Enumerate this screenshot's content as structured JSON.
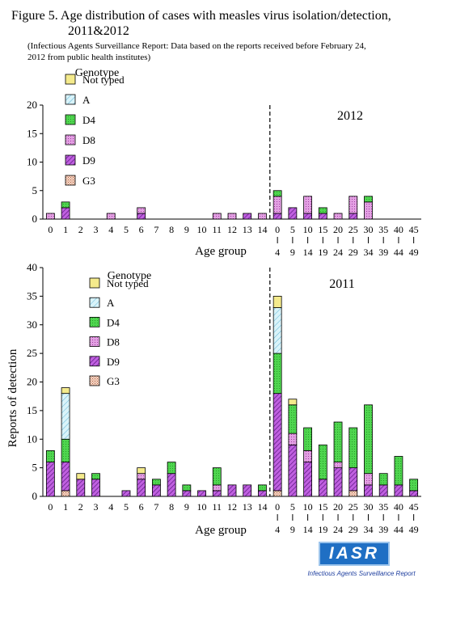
{
  "header": {
    "title_line1": "Figure 5. Age distribution of cases with measles virus isolation/detection,",
    "title_line2": "2011&2012",
    "subtitle_line1": "(Infectious Agents Surveillance Report: Data based on the reports received before February 24,",
    "subtitle_line2": "2012 from public health institutes)"
  },
  "logo": {
    "text": "IASR",
    "caption": "Infectious Agents Surveillance Report"
  },
  "colors": {
    "Not typed": "#f4ea8c",
    "A": "#cfeef6",
    "D4": "#54d854",
    "D8": "#d88ad8",
    "D9": "#b443d0",
    "G3": "#f2c9b4",
    "axis": "#000000"
  },
  "chart_data": [
    {
      "type": "bar",
      "stacked": true,
      "year_label": "2012",
      "xlabel": "Age group",
      "ylabel": "",
      "ylim": [
        0,
        20
      ],
      "yticks": [
        0,
        5,
        10,
        15,
        20
      ],
      "legend_title": "Genotype",
      "legend_position": "top-left",
      "legend": [
        "Not typed",
        "A",
        "D4",
        "D8",
        "D9",
        "G3"
      ],
      "categories": [
        "0",
        "1",
        "2",
        "3",
        "4",
        "5",
        "6",
        "7",
        "8",
        "9",
        "10",
        "11",
        "12",
        "13",
        "14",
        "0-4",
        "5-9",
        "10-14",
        "15-19",
        "20-24",
        "25-29",
        "30-34",
        "35-39",
        "40-44",
        "45-49"
      ],
      "tick_top": [
        "0",
        "1",
        "2",
        "3",
        "4",
        "5",
        "6",
        "7",
        "8",
        "9",
        "10",
        "11",
        "12",
        "13",
        "14",
        "0",
        "5",
        "10",
        "15",
        "20",
        "25",
        "30",
        "35",
        "40",
        "45"
      ],
      "tick_bottom": [
        "",
        "",
        "",
        "",
        "",
        "",
        "",
        "",
        "",
        "",
        "",
        "",
        "",
        "",
        "",
        "4",
        "9",
        "14",
        "19",
        "24",
        "29",
        "34",
        "39",
        "44",
        "49"
      ],
      "series": [
        {
          "name": "G3",
          "values": [
            0,
            0,
            0,
            0,
            0,
            0,
            0,
            0,
            0,
            0,
            0,
            0,
            0,
            0,
            0,
            0,
            0,
            0,
            0,
            0,
            0,
            0,
            0,
            0,
            0
          ]
        },
        {
          "name": "D9",
          "values": [
            0,
            2,
            0,
            0,
            0,
            0,
            1,
            0,
            0,
            0,
            0,
            0,
            0,
            1,
            0,
            1,
            2,
            1,
            1,
            0,
            1,
            0,
            0,
            0,
            0
          ]
        },
        {
          "name": "D8",
          "values": [
            1,
            0,
            0,
            0,
            1,
            0,
            1,
            0,
            0,
            0,
            0,
            1,
            1,
            0,
            1,
            3,
            0,
            3,
            0,
            1,
            3,
            3,
            0,
            0,
            0
          ]
        },
        {
          "name": "D4",
          "values": [
            0,
            1,
            0,
            0,
            0,
            0,
            0,
            0,
            0,
            0,
            0,
            0,
            0,
            0,
            0,
            1,
            0,
            0,
            1,
            0,
            0,
            1,
            0,
            0,
            0
          ]
        },
        {
          "name": "A",
          "values": [
            0,
            0,
            0,
            0,
            0,
            0,
            0,
            0,
            0,
            0,
            0,
            0,
            0,
            0,
            0,
            0,
            0,
            0,
            0,
            0,
            0,
            0,
            0,
            0,
            0
          ]
        },
        {
          "name": "Not typed",
          "values": [
            0,
            0,
            0,
            0,
            0,
            0,
            0,
            0,
            0,
            0,
            0,
            0,
            0,
            0,
            0,
            0,
            0,
            0,
            0,
            0,
            0,
            0,
            0,
            0,
            0
          ]
        }
      ]
    },
    {
      "type": "bar",
      "stacked": true,
      "year_label": "2011",
      "xlabel": "Age group",
      "ylabel": "Reports of detection",
      "ylim": [
        0,
        40
      ],
      "yticks": [
        0,
        5,
        10,
        15,
        20,
        25,
        30,
        35,
        40
      ],
      "legend_title": "Genotype",
      "legend_position": "top-left",
      "legend": [
        "Not typed",
        "A",
        "D4",
        "D8",
        "D9",
        "G3"
      ],
      "categories": [
        "0",
        "1",
        "2",
        "3",
        "4",
        "5",
        "6",
        "7",
        "8",
        "9",
        "10",
        "11",
        "12",
        "13",
        "14",
        "0-4",
        "5-9",
        "10-14",
        "15-19",
        "20-24",
        "25-29",
        "30-34",
        "35-39",
        "40-44",
        "45-49"
      ],
      "tick_top": [
        "0",
        "1",
        "2",
        "3",
        "4",
        "5",
        "6",
        "7",
        "8",
        "9",
        "10",
        "11",
        "12",
        "13",
        "14",
        "0",
        "5",
        "10",
        "15",
        "20",
        "25",
        "30",
        "35",
        "40",
        "45"
      ],
      "tick_bottom": [
        "",
        "",
        "",
        "",
        "",
        "",
        "",
        "",
        "",
        "",
        "",
        "",
        "",
        "",
        "",
        "4",
        "9",
        "14",
        "19",
        "24",
        "29",
        "34",
        "39",
        "44",
        "49"
      ],
      "series": [
        {
          "name": "G3",
          "values": [
            0,
            1,
            0,
            0,
            0,
            0,
            0,
            0,
            0,
            0,
            0,
            0,
            0,
            0,
            0,
            1,
            0,
            0,
            0,
            0,
            1,
            0,
            0,
            0,
            0
          ]
        },
        {
          "name": "D9",
          "values": [
            6,
            5,
            3,
            3,
            0,
            1,
            3,
            2,
            4,
            1,
            1,
            1,
            2,
            2,
            1,
            17,
            9,
            6,
            3,
            5,
            4,
            2,
            2,
            2,
            1
          ]
        },
        {
          "name": "D8",
          "values": [
            0,
            0,
            0,
            0,
            0,
            0,
            1,
            0,
            0,
            0,
            0,
            1,
            0,
            0,
            0,
            0,
            2,
            2,
            0,
            1,
            0,
            2,
            0,
            0,
            0
          ]
        },
        {
          "name": "D4",
          "values": [
            2,
            4,
            0,
            1,
            0,
            0,
            0,
            1,
            2,
            1,
            0,
            3,
            0,
            0,
            1,
            7,
            5,
            4,
            6,
            7,
            7,
            12,
            2,
            5,
            2
          ]
        },
        {
          "name": "A",
          "values": [
            0,
            8,
            0,
            0,
            0,
            0,
            0,
            0,
            0,
            0,
            0,
            0,
            0,
            0,
            0,
            8,
            0,
            0,
            0,
            0,
            0,
            0,
            0,
            0,
            0
          ]
        },
        {
          "name": "Not typed",
          "values": [
            0,
            1,
            1,
            0,
            0,
            0,
            1,
            0,
            0,
            0,
            0,
            0,
            0,
            0,
            0,
            2,
            1,
            0,
            0,
            0,
            0,
            0,
            0,
            0,
            0
          ]
        }
      ]
    }
  ]
}
